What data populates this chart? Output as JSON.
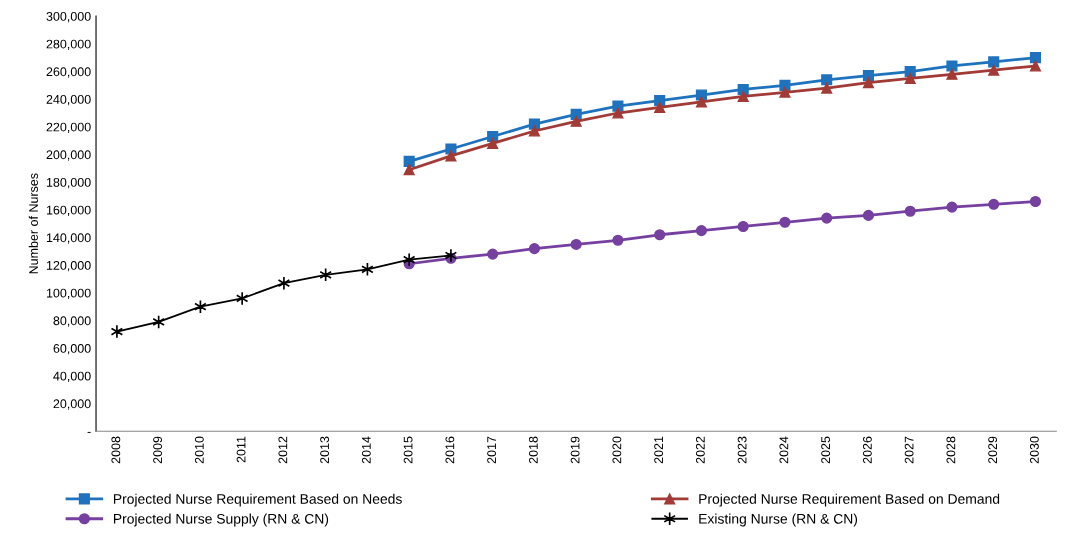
{
  "chart_data": {
    "type": "line",
    "ylabel": "Number of Nurses",
    "categories": [
      "2008",
      "2009",
      "2010",
      "2011",
      "2012",
      "2013",
      "2014",
      "2015",
      "2016",
      "2017",
      "2018",
      "2019",
      "2020",
      "2021",
      "2022",
      "2023",
      "2024",
      "2025",
      "2026",
      "2027",
      "2028",
      "2029",
      "2030"
    ],
    "series": [
      {
        "name": "Projected Nurse Requirement Based on Needs",
        "color": "#1f72bd",
        "marker": "square",
        "values": [
          null,
          null,
          null,
          null,
          null,
          null,
          null,
          195000,
          204000,
          213000,
          222000,
          229000,
          235000,
          239000,
          243000,
          247000,
          250000,
          254000,
          257000,
          260000,
          264000,
          267000,
          270000
        ]
      },
      {
        "name": "Projected Nurse Requirement Based on Demand",
        "color": "#a23a36",
        "marker": "triangle",
        "values": [
          null,
          null,
          null,
          null,
          null,
          null,
          null,
          189000,
          199000,
          208000,
          217000,
          224000,
          230000,
          234000,
          238000,
          242000,
          245000,
          248000,
          252000,
          255000,
          258000,
          261000,
          264000
        ]
      },
      {
        "name": "Projected Nurse Supply (RN & CN)",
        "color": "#7540a0",
        "marker": "circle",
        "values": [
          null,
          null,
          null,
          null,
          null,
          null,
          null,
          121000,
          125000,
          128000,
          132000,
          135000,
          138000,
          142000,
          145000,
          148000,
          151000,
          154000,
          156000,
          159000,
          162000,
          164000,
          166000
        ]
      },
      {
        "name": "Existing Nurse (RN & CN)",
        "color": "#000000",
        "marker": "cross",
        "values": [
          72000,
          79000,
          90000,
          96000,
          107000,
          113000,
          117000,
          124000,
          127000,
          null,
          null,
          null,
          null,
          null,
          null,
          null,
          null,
          null,
          null,
          null,
          null,
          null,
          null
        ]
      }
    ],
    "ylim": [
      0,
      300000
    ],
    "yticks": [
      {
        "value": 0,
        "label": "-"
      },
      {
        "value": 20000,
        "label": "20,000"
      },
      {
        "value": 40000,
        "label": "40,000"
      },
      {
        "value": 60000,
        "label": "60,000"
      },
      {
        "value": 80000,
        "label": "80,000"
      },
      {
        "value": 100000,
        "label": "100,000"
      },
      {
        "value": 120000,
        "label": "120,000"
      },
      {
        "value": 140000,
        "label": "140,000"
      },
      {
        "value": 160000,
        "label": "160,000"
      },
      {
        "value": 180000,
        "label": "180,000"
      },
      {
        "value": 200000,
        "label": "200,000"
      },
      {
        "value": 220000,
        "label": "220,000"
      },
      {
        "value": 240000,
        "label": "240,000"
      },
      {
        "value": 260000,
        "label": "260,000"
      },
      {
        "value": 280000,
        "label": "280,000"
      },
      {
        "value": 300000,
        "label": "300,000"
      }
    ],
    "grid": false,
    "legend": "bottom",
    "line_style": "solid"
  }
}
